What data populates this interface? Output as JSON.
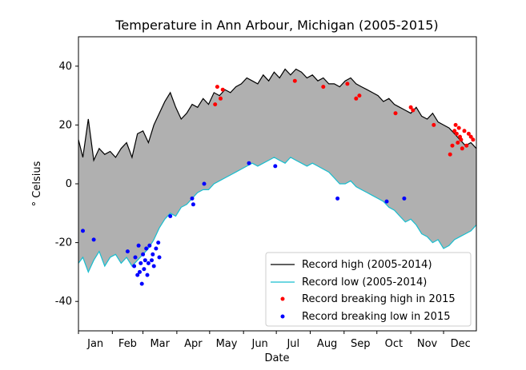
{
  "chart_data": {
    "type": "line",
    "title": "Temperature in Ann Arbour, Michigan (2005-2015)",
    "xlabel": "Date",
    "ylabel": "° Celsius",
    "xlim": [
      1,
      365
    ],
    "ylim": [
      -50,
      50
    ],
    "yticks": [
      -40,
      -20,
      0,
      20,
      40
    ],
    "month_labels": [
      "Jan",
      "Feb",
      "Mar",
      "Apr",
      "May",
      "Jun",
      "Jul",
      "Aug",
      "Sep",
      "Oct",
      "Nov",
      "Dec"
    ],
    "grid": false,
    "legend_position": "lower-right",
    "fill_between": {
      "color": "#b0b0b0"
    },
    "series": [
      {
        "name": "Record high (2005-2014)",
        "color": "#000000",
        "x": [
          1,
          5,
          10,
          15,
          20,
          25,
          30,
          35,
          40,
          45,
          50,
          55,
          60,
          65,
          70,
          75,
          80,
          85,
          90,
          95,
          100,
          105,
          110,
          115,
          120,
          125,
          130,
          135,
          140,
          145,
          150,
          155,
          160,
          165,
          170,
          175,
          180,
          185,
          190,
          195,
          200,
          205,
          210,
          215,
          220,
          225,
          230,
          235,
          240,
          245,
          250,
          255,
          260,
          265,
          270,
          275,
          280,
          285,
          290,
          295,
          300,
          305,
          310,
          315,
          320,
          325,
          330,
          335,
          340,
          345,
          350,
          355,
          360,
          365
        ],
        "y": [
          15,
          9,
          22,
          8,
          12,
          10,
          11,
          9,
          12,
          14,
          9,
          17,
          18,
          14,
          20,
          24,
          28,
          31,
          26,
          22,
          24,
          27,
          26,
          29,
          27,
          31,
          30,
          32,
          31,
          33,
          34,
          36,
          35,
          34,
          37,
          35,
          38,
          36,
          39,
          37,
          39,
          38,
          36,
          37,
          35,
          36,
          34,
          34,
          33,
          35,
          36,
          34,
          33,
          32,
          31,
          30,
          28,
          29,
          27,
          26,
          25,
          24,
          26,
          23,
          22,
          24,
          21,
          20,
          19,
          17,
          15,
          13,
          14,
          12
        ]
      },
      {
        "name": "Record low (2005-2014)",
        "color": "#17becf",
        "x": [
          1,
          5,
          10,
          15,
          20,
          25,
          30,
          35,
          40,
          45,
          50,
          55,
          60,
          65,
          70,
          75,
          80,
          85,
          90,
          95,
          100,
          105,
          110,
          115,
          120,
          125,
          130,
          135,
          140,
          145,
          150,
          155,
          160,
          165,
          170,
          175,
          180,
          185,
          190,
          195,
          200,
          205,
          210,
          215,
          220,
          225,
          230,
          235,
          240,
          245,
          250,
          255,
          260,
          265,
          270,
          275,
          280,
          285,
          290,
          295,
          300,
          305,
          310,
          315,
          320,
          325,
          330,
          335,
          340,
          345,
          350,
          355,
          360,
          365
        ],
        "y": [
          -27,
          -25,
          -30,
          -26,
          -23,
          -28,
          -25,
          -24,
          -27,
          -25,
          -28,
          -26,
          -24,
          -22,
          -19,
          -15,
          -12,
          -10,
          -11,
          -8,
          -7,
          -5,
          -3,
          -2,
          -2,
          0,
          1,
          2,
          3,
          4,
          5,
          6,
          7,
          6,
          7,
          8,
          9,
          8,
          7,
          9,
          8,
          7,
          6,
          7,
          6,
          5,
          4,
          2,
          0,
          0,
          1,
          -1,
          -2,
          -3,
          -4,
          -5,
          -6,
          -8,
          -9,
          -11,
          -13,
          -12,
          -14,
          -17,
          -18,
          -20,
          -19,
          -22,
          -21,
          -19,
          -18,
          -17,
          -16,
          -14
        ]
      }
    ],
    "scatter_series": [
      {
        "name": "Record breaking high in 2015",
        "color": "#ff0000",
        "x": [
          126,
          128,
          131,
          133,
          199,
          225,
          247,
          255,
          258,
          291,
          305,
          307,
          326,
          341,
          343,
          345,
          346,
          347,
          348,
          349,
          350,
          351,
          352,
          354,
          356,
          358,
          360,
          362
        ],
        "y": [
          27,
          33,
          29,
          32,
          35,
          33,
          34,
          29,
          30,
          24,
          26,
          25,
          20,
          10,
          13,
          18,
          20,
          17,
          14,
          19,
          16,
          15,
          12,
          18,
          13,
          17,
          16,
          15
        ]
      },
      {
        "name": "Record breaking low in 2015",
        "color": "#0000ff",
        "x": [
          5,
          15,
          46,
          52,
          53,
          55,
          56,
          57,
          58,
          59,
          60,
          61,
          62,
          63,
          64,
          65,
          66,
          68,
          69,
          70,
          72,
          74,
          75,
          85,
          105,
          106,
          116,
          157,
          181,
          238,
          283,
          299
        ],
        "y": [
          -16,
          -19,
          -23,
          -28,
          -25,
          -31,
          -21,
          -30,
          -27,
          -34,
          -24,
          -29,
          -26,
          -22,
          -31,
          -27,
          -21,
          -26,
          -24,
          -28,
          -22,
          -20,
          -25,
          -11,
          -5,
          -7,
          0,
          7,
          6,
          -5,
          -6,
          -5
        ]
      }
    ]
  }
}
